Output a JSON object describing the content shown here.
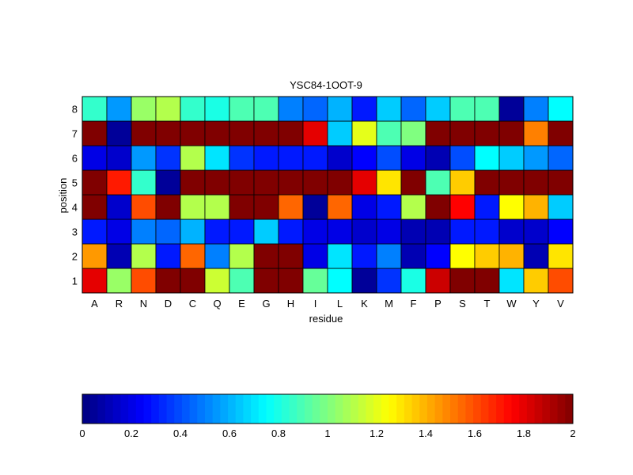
{
  "chart_data": {
    "type": "heatmap",
    "title": "YSC84-1OOT-9",
    "xlabel": "residue",
    "ylabel": "position",
    "x_categories": [
      "A",
      "R",
      "N",
      "D",
      "C",
      "Q",
      "E",
      "G",
      "H",
      "I",
      "L",
      "K",
      "M",
      "F",
      "P",
      "S",
      "T",
      "W",
      "Y",
      "V"
    ],
    "y_categories": [
      "1",
      "2",
      "3",
      "4",
      "5",
      "6",
      "7",
      "8"
    ],
    "values": [
      [
        1.8,
        1.05,
        1.6,
        2.0,
        2.0,
        1.15,
        0.9,
        2.0,
        2.0,
        0.95,
        0.75,
        0.05,
        0.35,
        0.8,
        1.85,
        2.0,
        2.0,
        0.7,
        1.35,
        1.6
      ],
      [
        1.45,
        0.1,
        1.1,
        0.3,
        1.55,
        0.5,
        1.1,
        2.0,
        2.0,
        0.2,
        0.7,
        0.3,
        0.5,
        0.1,
        0.25,
        1.25,
        1.35,
        1.4,
        0.1,
        1.3
      ],
      [
        0.3,
        0.2,
        0.5,
        0.45,
        0.6,
        0.3,
        0.3,
        0.65,
        0.3,
        0.2,
        0.2,
        0.15,
        0.2,
        0.1,
        0.1,
        0.3,
        0.3,
        0.15,
        0.15,
        0.25
      ],
      [
        2.0,
        0.15,
        1.6,
        2.0,
        1.1,
        1.1,
        2.0,
        2.0,
        1.55,
        0.05,
        1.55,
        0.2,
        0.3,
        1.1,
        2.0,
        1.75,
        0.3,
        1.25,
        1.4,
        0.65
      ],
      [
        2.0,
        1.7,
        0.85,
        0.05,
        2.0,
        2.0,
        2.0,
        2.0,
        2.0,
        2.0,
        2.0,
        1.8,
        1.3,
        2.0,
        0.9,
        1.35,
        2.0,
        2.0,
        2.0,
        2.0
      ],
      [
        0.2,
        0.15,
        0.55,
        0.35,
        1.1,
        0.7,
        0.35,
        0.3,
        0.3,
        0.3,
        0.15,
        0.25,
        0.4,
        0.2,
        0.1,
        0.4,
        0.75,
        0.65,
        0.55,
        0.45
      ],
      [
        2.0,
        0.05,
        2.0,
        2.0,
        2.0,
        2.0,
        2.0,
        2.0,
        2.0,
        1.8,
        0.65,
        1.2,
        0.9,
        1.0,
        2.0,
        2.0,
        2.0,
        2.0,
        1.5,
        2.0
      ],
      [
        0.85,
        0.55,
        1.05,
        1.1,
        0.85,
        0.8,
        0.9,
        0.9,
        0.5,
        0.45,
        0.6,
        0.3,
        0.65,
        0.45,
        0.65,
        0.9,
        0.9,
        0.05,
        0.5,
        0.75
      ]
    ],
    "colorbar": {
      "range": [
        0,
        2
      ],
      "ticks": [
        "0",
        "0.2",
        "0.4",
        "0.6",
        "0.8",
        "1",
        "1.2",
        "1.4",
        "1.6",
        "1.8",
        "2"
      ],
      "colormap": "jet"
    }
  }
}
